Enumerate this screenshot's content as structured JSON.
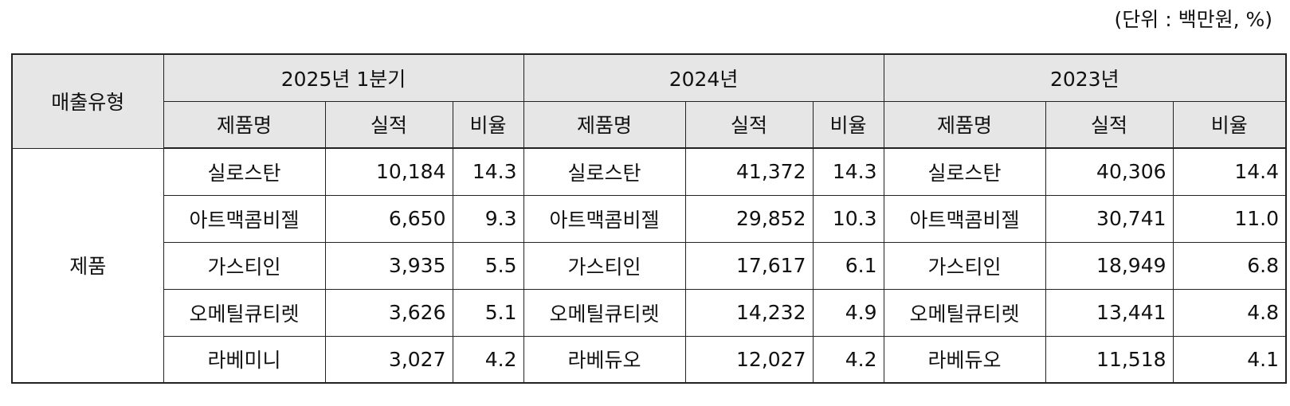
{
  "unit_note": "(단위 : 백만원, %)",
  "header": {
    "type_label": "매출유형",
    "periods": [
      "2025년 1분기",
      "2024년",
      "2023년"
    ],
    "sub_columns": [
      "제품명",
      "실적",
      "비율"
    ]
  },
  "group_label": "제품",
  "rows": [
    [
      {
        "name": "실로스탄",
        "value": "10,184",
        "ratio": "14.3"
      },
      {
        "name": "실로스탄",
        "value": "41,372",
        "ratio": "14.3"
      },
      {
        "name": "실로스탄",
        "value": "40,306",
        "ratio": "14.4"
      }
    ],
    [
      {
        "name": "아트맥콤비젤",
        "value": "6,650",
        "ratio": "9.3"
      },
      {
        "name": "아트맥콤비젤",
        "value": "29,852",
        "ratio": "10.3"
      },
      {
        "name": "아트맥콤비젤",
        "value": "30,741",
        "ratio": "11.0"
      }
    ],
    [
      {
        "name": "가스티인",
        "value": "3,935",
        "ratio": "5.5"
      },
      {
        "name": "가스티인",
        "value": "17,617",
        "ratio": "6.1"
      },
      {
        "name": "가스티인",
        "value": "18,949",
        "ratio": "6.8"
      }
    ],
    [
      {
        "name": "오메틸큐티렛",
        "value": "3,626",
        "ratio": "5.1"
      },
      {
        "name": "오메틸큐티렛",
        "value": "14,232",
        "ratio": "4.9"
      },
      {
        "name": "오메틸큐티렛",
        "value": "13,441",
        "ratio": "4.8"
      }
    ],
    [
      {
        "name": "라베미니",
        "value": "3,027",
        "ratio": "4.2"
      },
      {
        "name": "라베듀오",
        "value": "12,027",
        "ratio": "4.2"
      },
      {
        "name": "라베듀오",
        "value": "11,518",
        "ratio": "4.1"
      }
    ]
  ]
}
